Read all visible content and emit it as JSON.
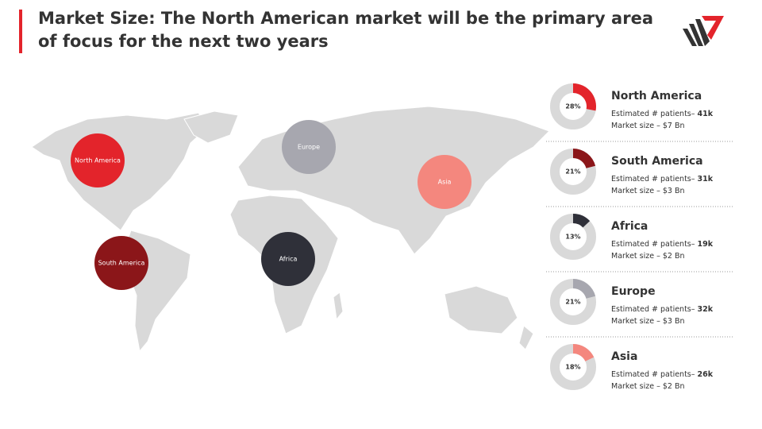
{
  "header": {
    "title": "Market Size: The North American market will be the primary area of focus for the next two years"
  },
  "map_bubbles": [
    {
      "label": "North America",
      "color": "#e3242b"
    },
    {
      "label": "Europe",
      "color": "#a7a7af"
    },
    {
      "label": "Asia",
      "color": "#f4877e"
    },
    {
      "label": "South America",
      "color": "#8b1619"
    },
    {
      "label": "Africa",
      "color": "#2f3039"
    }
  ],
  "chart_data": [
    {
      "type": "donut",
      "title": "North America",
      "values": [
        28
      ],
      "value_labels": [
        "28%"
      ],
      "color": "#e3242b",
      "patients_label": "Estimated # patients–",
      "patients": "41k",
      "market_label": "Market size – $7 Bn"
    },
    {
      "type": "donut",
      "title": "South America",
      "values": [
        21
      ],
      "value_labels": [
        "21%"
      ],
      "color": "#8b1619",
      "patients_label": "Estimated # patients–",
      "patients": "31k",
      "market_label": "Market size – $3 Bn"
    },
    {
      "type": "donut",
      "title": "Africa",
      "values": [
        13
      ],
      "value_labels": [
        "13%"
      ],
      "color": "#2f3039",
      "patients_label": "Estimated # patients–",
      "patients": "19k",
      "market_label": "Market size – $2 Bn"
    },
    {
      "type": "donut",
      "title": "Europe",
      "values": [
        21
      ],
      "value_labels": [
        "21%"
      ],
      "color": "#a7a7af",
      "patients_label": "Estimated # patients–",
      "patients": "32k",
      "market_label": "Market size – $3 Bn"
    },
    {
      "type": "donut",
      "title": "Asia",
      "values": [
        18
      ],
      "value_labels": [
        "18%"
      ],
      "color": "#f4877e",
      "patients_label": "Estimated # patients–",
      "patients": "26k",
      "market_label": "Market size – $2 Bn"
    }
  ]
}
